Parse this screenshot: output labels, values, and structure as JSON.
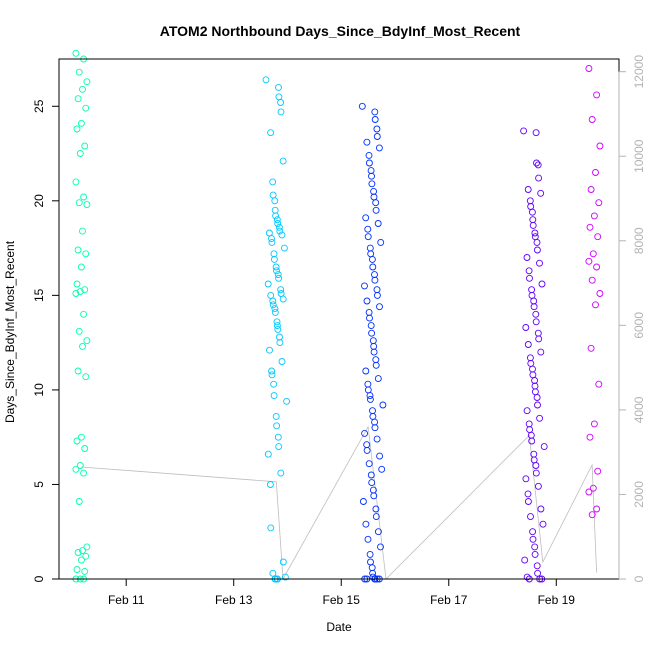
{
  "chart_data": {
    "type": "scatter",
    "title": "ATOM2 Northbound Days_Since_BdyInf_Most_Recent",
    "xlabel": "Date",
    "ylabel": "Days_Since_BdyInf_Most_Recent",
    "x_ticks": [
      "Feb 11",
      "Feb 13",
      "Feb 15",
      "Feb 17",
      "Feb 19"
    ],
    "y_ticks": [
      0,
      5,
      10,
      15,
      20,
      25
    ],
    "y2_ticks": [
      0,
      2000,
      4000,
      6000,
      8000,
      10000,
      12000
    ],
    "xlim": [
      "2021-02-09 18:00",
      "2021-02-20 04:00"
    ],
    "ylim": [
      0,
      27.5
    ],
    "y2lim": [
      0,
      12300
    ],
    "grid": false,
    "legend": "none",
    "point_colors": [
      "#00ffb0",
      "#00c8ff",
      "#0030ff",
      "#6000ff",
      "#d000ff"
    ],
    "line_color": "#bebebe",
    "series": [
      {
        "x": "2021-02-10 04:00",
        "values": [
          27.8,
          27.5,
          26.8,
          26.3,
          25.9,
          25.4,
          24.9,
          24.1,
          23.8,
          22.9,
          22.5,
          21.0,
          20.2,
          19.9,
          19.8,
          18.4,
          17.4,
          17.2,
          16.5,
          15.6,
          15.3,
          15.2,
          15.1,
          14.0,
          13.1,
          12.6,
          12.3,
          11.0,
          10.7,
          7.5,
          7.3,
          6.9,
          6.0,
          5.8,
          5.6,
          4.1,
          1.7,
          1.5,
          1.4,
          1.2,
          1.0,
          0.5,
          0.4,
          0.0,
          0.0,
          0.0
        ]
      },
      {
        "x": "2021-02-13 19:00",
        "values": [
          26.4,
          26.0,
          25.5,
          25.2,
          24.7,
          23.6,
          22.1,
          21.0,
          20.3,
          20.0,
          19.5,
          19.2,
          19.0,
          18.8,
          18.6,
          18.4,
          18.3,
          18.2,
          18.0,
          17.8,
          17.5,
          17.2,
          16.9,
          16.5,
          16.3,
          16.1,
          15.9,
          15.6,
          15.3,
          15.1,
          15.0,
          14.8,
          14.7,
          14.5,
          14.3,
          14.1,
          13.6,
          13.4,
          13.2,
          12.8,
          12.5,
          12.1,
          11.5,
          11.0,
          10.8,
          10.3,
          9.7,
          9.4,
          8.6,
          8.1,
          7.5,
          7.0,
          6.6,
          5.6,
          5.0,
          2.7,
          0.9,
          0.3,
          0.1,
          0.0,
          0.0,
          0.0,
          0.0
        ]
      },
      {
        "x": "2021-02-15 14:00",
        "values": [
          25.0,
          24.7,
          24.3,
          23.8,
          23.4,
          23.1,
          22.8,
          22.4,
          22.0,
          21.6,
          21.3,
          20.9,
          20.5,
          20.2,
          19.9,
          19.5,
          19.1,
          18.8,
          18.5,
          18.1,
          17.8,
          17.5,
          17.2,
          16.9,
          16.5,
          16.1,
          15.8,
          15.5,
          15.3,
          15.0,
          14.7,
          14.4,
          14.1,
          13.8,
          13.4,
          13.0,
          12.6,
          12.3,
          12.0,
          11.6,
          11.3,
          11.0,
          10.6,
          10.3,
          10.0,
          9.7,
          9.5,
          9.2,
          8.9,
          8.6,
          8.3,
          8.0,
          7.7,
          7.4,
          7.1,
          6.8,
          6.5,
          6.1,
          5.8,
          5.5,
          5.1,
          4.7,
          4.4,
          4.1,
          3.7,
          3.3,
          2.9,
          2.5,
          2.1,
          1.7,
          1.3,
          0.9,
          0.6,
          0.3,
          0.1,
          0.0,
          0.0,
          0.0,
          0.0,
          0.0,
          0.0
        ]
      },
      {
        "x": "2021-02-18 14:00",
        "values": [
          23.7,
          23.6,
          22.0,
          21.9,
          21.2,
          20.6,
          20.4,
          20.0,
          19.7,
          19.4,
          19.0,
          18.7,
          18.3,
          18.1,
          17.8,
          17.4,
          17.0,
          16.7,
          16.3,
          15.9,
          15.6,
          15.3,
          15.0,
          14.7,
          14.4,
          14.0,
          13.6,
          13.3,
          13.0,
          12.7,
          12.4,
          12.0,
          11.7,
          11.4,
          11.1,
          10.8,
          10.5,
          10.2,
          9.9,
          9.6,
          9.2,
          8.9,
          8.5,
          8.2,
          7.9,
          7.6,
          7.3,
          7.0,
          6.6,
          6.3,
          6.0,
          5.6,
          5.3,
          4.9,
          4.5,
          4.1,
          3.7,
          3.3,
          2.9,
          2.5,
          2.1,
          1.7,
          1.3,
          1.0,
          0.7,
          0.3,
          0.1,
          0.0,
          0.0,
          0.0
        ]
      },
      {
        "x": "2021-02-19 17:00",
        "values": [
          27.0,
          25.6,
          24.3,
          22.9,
          21.5,
          20.6,
          19.9,
          19.2,
          18.6,
          18.1,
          17.2,
          16.8,
          16.5,
          15.8,
          15.1,
          14.5,
          12.2,
          10.3,
          8.2,
          7.5,
          5.7,
          4.8,
          4.6,
          3.7,
          3.4
        ]
      }
    ],
    "line_values": [
      {
        "x": "2021-02-10 04:00",
        "y2": 2650
      },
      {
        "x": "2021-02-13 19:00",
        "y2": 2300
      },
      {
        "x": "2021-02-13 22:00",
        "y2": 0
      },
      {
        "x": "2021-02-15 12:00",
        "y2": 3600
      },
      {
        "x": "2021-02-15 20:00",
        "y2": 0
      },
      {
        "x": "2021-02-18 12:00",
        "y2": 3400
      },
      {
        "x": "2021-02-18 18:00",
        "y2": 400
      },
      {
        "x": "2021-02-19 16:00",
        "y2": 2700
      },
      {
        "x": "2021-02-19 18:00",
        "y2": 150
      }
    ]
  }
}
